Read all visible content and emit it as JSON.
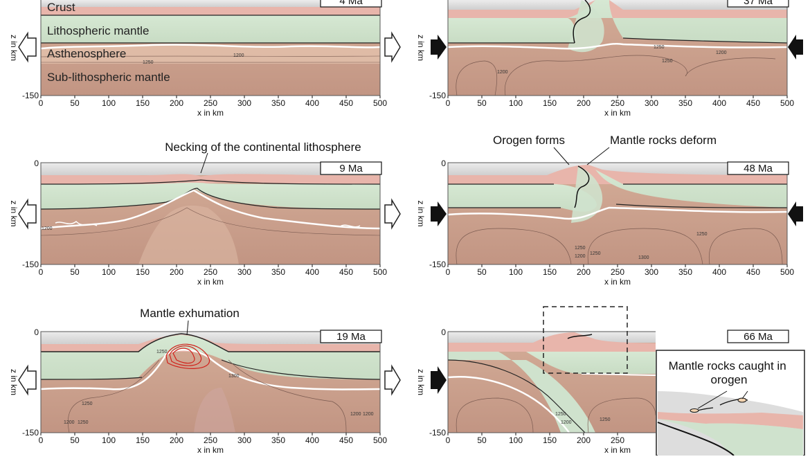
{
  "panels": [
    {
      "id": "p1",
      "age": "4 Ma",
      "layers": [
        "Crust",
        "Lithospheric mantle",
        "Asthenosphere",
        "Sub-lithospheric mantle"
      ],
      "contours": [
        "1200",
        "1250"
      ],
      "arrows": "extension"
    },
    {
      "id": "p2",
      "age": "9 Ma",
      "annotations": [
        "Necking of the continental lithosphere"
      ],
      "contours": [
        "1200"
      ],
      "arrows": "extension"
    },
    {
      "id": "p3",
      "age": "19 Ma",
      "annotations": [
        "Mantle exhumation"
      ],
      "contours": [
        "1250",
        "1300",
        "1250",
        "1200",
        "1250",
        "1200",
        "1200"
      ],
      "arrows": "extension"
    },
    {
      "id": "p4",
      "age": "37 Ma",
      "contours": [
        "1250",
        "1200",
        "1250",
        "1200"
      ],
      "arrows": "compression"
    },
    {
      "id": "p5",
      "age": "48 Ma",
      "annotations": [
        "Orogen forms",
        "Mantle rocks deform"
      ],
      "contours": [
        "1250",
        "1200",
        "1250",
        "1250",
        "1300"
      ],
      "arrows": "compression"
    },
    {
      "id": "p6",
      "age": "66 Ma",
      "annotations": [
        "Mantle rocks caught in orogen"
      ],
      "contours": [
        "1250",
        "1200",
        "1250"
      ],
      "arrows": "compression"
    }
  ],
  "axes": {
    "xlabel": "x in km",
    "ylabel": "z in km",
    "xticks": [
      "0",
      "50",
      "100",
      "150",
      "200",
      "250",
      "300",
      "350",
      "400",
      "450",
      "500"
    ],
    "xticks_partial": [
      "0",
      "50",
      "100",
      "150",
      "200",
      "250"
    ],
    "yticks": [
      "0",
      "-150"
    ]
  },
  "colors": {
    "crust": "#e8b5ab",
    "lith_mantle": "#cfe2cd",
    "asthenosphere": "#e6c9b4",
    "sub_lith_mantle": "#c49a88",
    "sediment": "#d5d5d5",
    "isotherm": "#ffffff",
    "melt": "#d0201a"
  }
}
